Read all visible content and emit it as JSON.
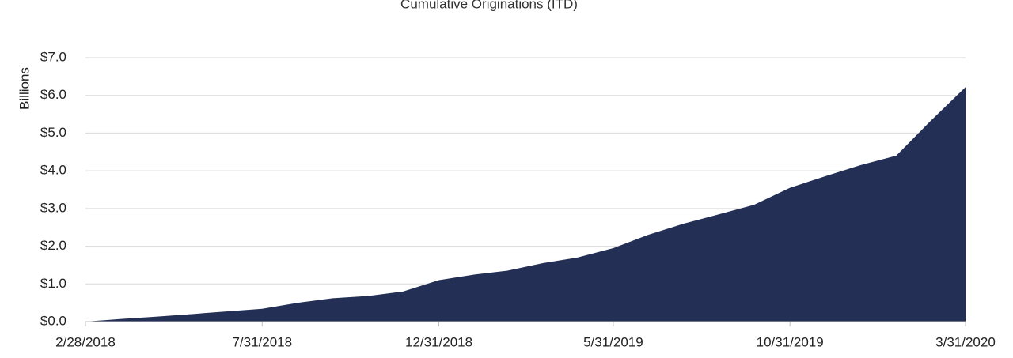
{
  "chart_data": {
    "type": "area",
    "title": "Cumulative Originations (ITD)",
    "y_label": "Billions",
    "x": [
      "2/28/2018",
      "3/31/2018",
      "4/30/2018",
      "5/31/2018",
      "6/30/2018",
      "7/31/2018",
      "8/31/2018",
      "9/30/2018",
      "10/31/2018",
      "11/30/2018",
      "12/31/2018",
      "1/31/2019",
      "2/28/2019",
      "3/31/2019",
      "4/30/2019",
      "5/31/2019",
      "6/30/2019",
      "7/31/2019",
      "8/31/2019",
      "9/30/2019",
      "10/31/2019",
      "11/30/2019",
      "12/31/2019",
      "1/31/2020",
      "2/29/2020",
      "3/31/2020"
    ],
    "values": [
      0.0,
      0.07,
      0.13,
      0.2,
      0.27,
      0.34,
      0.5,
      0.62,
      0.68,
      0.8,
      1.1,
      1.25,
      1.35,
      1.55,
      1.7,
      1.95,
      2.3,
      2.6,
      2.85,
      3.1,
      3.55,
      3.85,
      4.15,
      4.4,
      5.3,
      6.22
    ],
    "color": "#232f55",
    "xlim": [
      "2/28/2018",
      "3/31/2020"
    ],
    "xticks": [
      "2/28/2018",
      "7/31/2018",
      "12/31/2018",
      "5/31/2019",
      "10/31/2019",
      "3/31/2020"
    ],
    "ylim": [
      0,
      7
    ],
    "yticks": [
      {
        "value": 0,
        "label": "$0.0"
      },
      {
        "value": 1,
        "label": "$1.0"
      },
      {
        "value": 2,
        "label": "$2.0"
      },
      {
        "value": 3,
        "label": "$3.0"
      },
      {
        "value": 4,
        "label": "$4.0"
      },
      {
        "value": 5,
        "label": "$5.0"
      },
      {
        "value": 6,
        "label": "$6.0"
      },
      {
        "value": 7,
        "label": "$7.0"
      }
    ],
    "grid": true
  }
}
